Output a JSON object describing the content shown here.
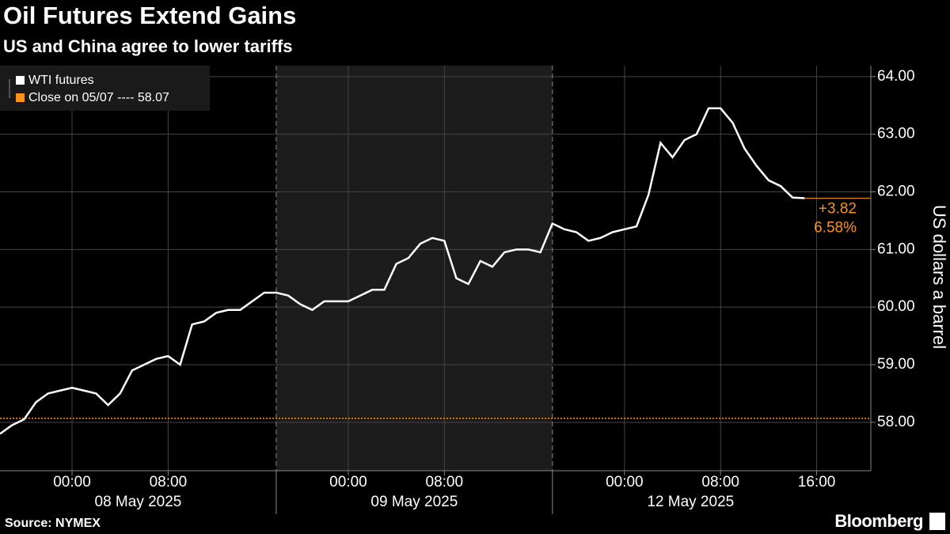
{
  "chart_data": {
    "type": "line",
    "title": "Oil Futures Extend Gains",
    "subtitle": "US and China agree to lower tariffs",
    "source": "Source: NYMEX",
    "brand": "Bloomberg",
    "y_label": "US dollars a barrel",
    "categories": [
      null,
      null,
      null,
      null,
      null,
      null,
      "00:00",
      null,
      null,
      null,
      null,
      null,
      null,
      null,
      "08:00",
      null,
      null,
      null,
      null,
      null,
      null,
      null,
      null,
      null,
      null,
      null,
      null,
      null,
      null,
      "00:00",
      null,
      null,
      null,
      null,
      null,
      null,
      null,
      "08:00",
      null,
      null,
      null,
      null,
      null,
      null,
      null,
      null,
      null,
      null,
      null,
      null,
      null,
      null,
      "00:00",
      null,
      null,
      null,
      null,
      null,
      null,
      null,
      "08:00",
      null,
      null,
      null,
      null,
      null,
      null,
      null,
      "16:00"
    ],
    "groups": [
      "08 May 2025",
      "09 May 2025",
      "12 May 2025"
    ],
    "series": [
      {
        "name": "WTI futures",
        "color": "#ffffff",
        "values": [
          57.8,
          57.95,
          58.05,
          58.35,
          58.5,
          58.55,
          58.6,
          58.55,
          58.5,
          58.3,
          58.5,
          58.9,
          59.0,
          59.1,
          59.15,
          59.0,
          59.7,
          59.75,
          59.9,
          59.95,
          59.95,
          60.1,
          60.25,
          60.25,
          60.2,
          60.05,
          59.95,
          60.1,
          60.1,
          60.1,
          60.2,
          60.3,
          60.3,
          60.75,
          60.85,
          61.1,
          61.2,
          61.15,
          60.5,
          60.4,
          60.8,
          60.7,
          60.95,
          61.0,
          61.0,
          60.95,
          61.45,
          61.35,
          61.3,
          61.15,
          61.2,
          61.3,
          61.35,
          61.4,
          61.95,
          62.85,
          62.6,
          62.9,
          63.0,
          63.45,
          63.45,
          63.2,
          62.75,
          62.45,
          62.2,
          62.1,
          61.9,
          61.89,
          null
        ]
      }
    ],
    "reference": {
      "name": "Close on 05/07 ---- 58.07",
      "value": 58.07,
      "color": "#f7931a"
    },
    "change_labels": [
      "+3.82",
      "6.58%"
    ],
    "ylim": [
      57.16,
      64.19
    ],
    "yticks": [
      {
        "value": 58,
        "label": "58.00"
      },
      {
        "value": 59,
        "label": "59.00"
      },
      {
        "value": 60,
        "label": "60.00"
      },
      {
        "value": 61,
        "label": "61.00"
      },
      {
        "value": 62,
        "label": "62.00"
      },
      {
        "value": 63,
        "label": "63.00"
      },
      {
        "value": 64,
        "label": "64.00"
      }
    ],
    "grid": true
  }
}
